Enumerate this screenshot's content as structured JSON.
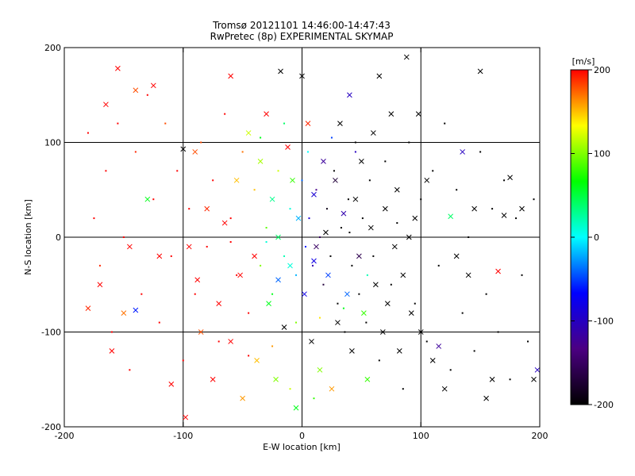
{
  "chart_data": {
    "type": "scatter",
    "title": "Tromsø 20121101 14:46:00-14:47:43",
    "subtitle": "RwPretec (8p) EXPERIMENTAL SKYMAP",
    "xlabel": "E-W location [km]",
    "ylabel": "N-S location [km]",
    "xlim": [
      -200,
      200
    ],
    "ylim": [
      -200,
      200
    ],
    "xticks": [
      "-200",
      "-100",
      "0",
      "100",
      "200"
    ],
    "yticks": [
      "-200",
      "-100",
      "0",
      "100",
      "200"
    ],
    "grid": true,
    "gridlines_km": [
      -100,
      0,
      100
    ],
    "colorbar": {
      "label": "[m/s]",
      "range": [
        -200,
        200
      ],
      "ticks": [
        "200",
        "100",
        "0",
        "-100",
        "-200"
      ],
      "colormap": [
        "#000000",
        "#4b0082",
        "#0000ff",
        "#00ffff",
        "#00ff00",
        "#ffff00",
        "#ff0000"
      ]
    },
    "series": [
      {
        "marker": "cross",
        "points": [
          [
            -155,
            178,
            200
          ],
          [
            -165,
            140,
            200
          ],
          [
            -140,
            155,
            180
          ],
          [
            -170,
            -50,
            200
          ],
          [
            -180,
            -75,
            190
          ],
          [
            -160,
            -120,
            200
          ],
          [
            -150,
            -80,
            170
          ],
          [
            -140,
            -77,
            -60
          ],
          [
            -130,
            40,
            60
          ],
          [
            -120,
            -20,
            200
          ],
          [
            -100,
            93,
            -200
          ],
          [
            -98,
            -190,
            200
          ],
          [
            -95,
            -10,
            200
          ],
          [
            -90,
            90,
            180
          ],
          [
            -88,
            -45,
            200
          ],
          [
            -85,
            -100,
            180
          ],
          [
            -80,
            30,
            190
          ],
          [
            -75,
            -150,
            200
          ],
          [
            -70,
            -70,
            200
          ],
          [
            -65,
            15,
            200
          ],
          [
            -60,
            -110,
            200
          ],
          [
            -55,
            60,
            150
          ],
          [
            -52,
            -40,
            200
          ],
          [
            -50,
            -170,
            160
          ],
          [
            -45,
            110,
            120
          ],
          [
            -40,
            -20,
            200
          ],
          [
            -38,
            -130,
            150
          ],
          [
            -35,
            80,
            110
          ],
          [
            -30,
            130,
            200
          ],
          [
            -28,
            -70,
            60
          ],
          [
            -25,
            40,
            30
          ],
          [
            -22,
            -150,
            100
          ],
          [
            -20,
            0,
            40
          ],
          [
            -18,
            175,
            -200
          ],
          [
            -15,
            -95,
            -200
          ],
          [
            -12,
            95,
            200
          ],
          [
            -10,
            -30,
            10
          ],
          [
            -8,
            60,
            80
          ],
          [
            -5,
            -180,
            60
          ],
          [
            -3,
            20,
            -20
          ],
          [
            0,
            170,
            -200
          ],
          [
            2,
            -60,
            -80
          ],
          [
            5,
            120,
            190
          ],
          [
            8,
            -110,
            -200
          ],
          [
            10,
            45,
            -90
          ],
          [
            12,
            -10,
            -150
          ],
          [
            15,
            -140,
            100
          ],
          [
            18,
            80,
            -120
          ],
          [
            20,
            5,
            -200
          ],
          [
            22,
            -40,
            -50
          ],
          [
            25,
            -160,
            160
          ],
          [
            28,
            60,
            -170
          ],
          [
            30,
            -90,
            -200
          ],
          [
            32,
            120,
            -200
          ],
          [
            35,
            25,
            -110
          ],
          [
            38,
            -60,
            -40
          ],
          [
            40,
            150,
            -100
          ],
          [
            42,
            -120,
            -200
          ],
          [
            45,
            40,
            -200
          ],
          [
            48,
            -20,
            -160
          ],
          [
            50,
            80,
            -200
          ],
          [
            52,
            -80,
            80
          ],
          [
            55,
            -150,
            80
          ],
          [
            58,
            10,
            -200
          ],
          [
            60,
            110,
            -200
          ],
          [
            62,
            -50,
            -200
          ],
          [
            65,
            170,
            -200
          ],
          [
            68,
            -100,
            -200
          ],
          [
            70,
            30,
            -200
          ],
          [
            72,
            -70,
            -200
          ],
          [
            75,
            130,
            -200
          ],
          [
            78,
            -10,
            -200
          ],
          [
            80,
            50,
            -200
          ],
          [
            82,
            -120,
            -200
          ],
          [
            85,
            -40,
            -200
          ],
          [
            88,
            190,
            -200
          ],
          [
            90,
            0,
            -200
          ],
          [
            92,
            -80,
            -200
          ],
          [
            95,
            20,
            -200
          ],
          [
            98,
            130,
            -200
          ],
          [
            100,
            -100,
            -200
          ],
          [
            105,
            60,
            -200
          ],
          [
            110,
            -130,
            -200
          ],
          [
            115,
            -115,
            -120
          ],
          [
            120,
            -160,
            -200
          ],
          [
            125,
            22,
            40
          ],
          [
            130,
            -20,
            -200
          ],
          [
            135,
            90,
            -100
          ],
          [
            140,
            -40,
            -200
          ],
          [
            145,
            30,
            -200
          ],
          [
            150,
            175,
            -200
          ],
          [
            155,
            -170,
            -200
          ],
          [
            160,
            -150,
            -200
          ],
          [
            165,
            -36,
            200
          ],
          [
            170,
            23,
            -200
          ],
          [
            175,
            63,
            -200
          ],
          [
            185,
            30,
            -200
          ],
          [
            195,
            -150,
            -200
          ],
          [
            198,
            -140,
            -100
          ],
          [
            -125,
            160,
            200
          ],
          [
            -145,
            -10,
            200
          ],
          [
            -110,
            -155,
            200
          ],
          [
            -60,
            170,
            200
          ],
          [
            -20,
            -45,
            -40
          ],
          [
            10,
            -25,
            -80
          ]
        ]
      },
      {
        "marker": "dot",
        "points": [
          [
            -180,
            110,
            200
          ],
          [
            -175,
            20,
            200
          ],
          [
            -170,
            -30,
            190
          ],
          [
            -165,
            70,
            200
          ],
          [
            -160,
            -100,
            200
          ],
          [
            -155,
            120,
            200
          ],
          [
            -150,
            0,
            200
          ],
          [
            -145,
            -140,
            200
          ],
          [
            -140,
            90,
            190
          ],
          [
            -135,
            -60,
            200
          ],
          [
            -130,
            150,
            200
          ],
          [
            -125,
            40,
            200
          ],
          [
            -120,
            -90,
            200
          ],
          [
            -115,
            120,
            180
          ],
          [
            -110,
            -20,
            200
          ],
          [
            -105,
            70,
            200
          ],
          [
            -100,
            -130,
            200
          ],
          [
            -95,
            30,
            200
          ],
          [
            -90,
            -60,
            200
          ],
          [
            -85,
            100,
            180
          ],
          [
            -80,
            -10,
            200
          ],
          [
            -75,
            60,
            200
          ],
          [
            -70,
            -110,
            200
          ],
          [
            -65,
            130,
            200
          ],
          [
            -60,
            20,
            200
          ],
          [
            -55,
            -40,
            200
          ],
          [
            -50,
            90,
            170
          ],
          [
            -45,
            -80,
            200
          ],
          [
            -40,
            50,
            150
          ],
          [
            -35,
            -30,
            100
          ],
          [
            -30,
            10,
            90
          ],
          [
            -25,
            -60,
            60
          ],
          [
            -20,
            70,
            120
          ],
          [
            -15,
            -20,
            20
          ],
          [
            -10,
            30,
            10
          ],
          [
            -5,
            -40,
            -20
          ],
          [
            0,
            60,
            -40
          ],
          [
            3,
            -10,
            -60
          ],
          [
            6,
            20,
            -90
          ],
          [
            9,
            -30,
            -110
          ],
          [
            12,
            50,
            -130
          ],
          [
            15,
            0,
            -150
          ],
          [
            18,
            -50,
            -170
          ],
          [
            21,
            30,
            -190
          ],
          [
            24,
            -20,
            -200
          ],
          [
            27,
            70,
            -200
          ],
          [
            30,
            -70,
            -200
          ],
          [
            33,
            10,
            -200
          ],
          [
            36,
            -100,
            -200
          ],
          [
            39,
            40,
            -200
          ],
          [
            42,
            -30,
            -200
          ],
          [
            45,
            100,
            -200
          ],
          [
            48,
            -60,
            -200
          ],
          [
            51,
            20,
            -200
          ],
          [
            54,
            -90,
            -200
          ],
          [
            57,
            60,
            -200
          ],
          [
            60,
            -20,
            -200
          ],
          [
            65,
            -130,
            -200
          ],
          [
            70,
            80,
            -200
          ],
          [
            75,
            -50,
            -200
          ],
          [
            80,
            15,
            -200
          ],
          [
            85,
            -160,
            -200
          ],
          [
            90,
            100,
            -200
          ],
          [
            95,
            -70,
            -200
          ],
          [
            100,
            40,
            -200
          ],
          [
            105,
            -110,
            -200
          ],
          [
            110,
            70,
            -200
          ],
          [
            115,
            -30,
            -200
          ],
          [
            120,
            120,
            -200
          ],
          [
            125,
            -140,
            -200
          ],
          [
            130,
            50,
            -200
          ],
          [
            135,
            -80,
            -200
          ],
          [
            140,
            0,
            -200
          ],
          [
            145,
            -120,
            -200
          ],
          [
            150,
            90,
            -200
          ],
          [
            155,
            -60,
            -200
          ],
          [
            160,
            30,
            -200
          ],
          [
            165,
            -100,
            -200
          ],
          [
            170,
            60,
            -200
          ],
          [
            175,
            -150,
            -200
          ],
          [
            180,
            20,
            -200
          ],
          [
            185,
            -40,
            -200
          ],
          [
            190,
            -110,
            -200
          ],
          [
            195,
            40,
            -200
          ],
          [
            -35,
            105,
            60
          ],
          [
            -15,
            120,
            40
          ],
          [
            5,
            90,
            0
          ],
          [
            25,
            105,
            -50
          ],
          [
            45,
            90,
            -100
          ],
          [
            -5,
            -90,
            100
          ],
          [
            15,
            -85,
            140
          ],
          [
            35,
            -75,
            60
          ],
          [
            -25,
            -115,
            160
          ],
          [
            -45,
            -125,
            200
          ],
          [
            55,
            -40,
            20
          ],
          [
            -10,
            -160,
            120
          ],
          [
            10,
            -170,
            80
          ],
          [
            -60,
            -5,
            200
          ],
          [
            40,
            5,
            -200
          ],
          [
            -30,
            -5,
            10
          ]
        ]
      }
    ]
  }
}
